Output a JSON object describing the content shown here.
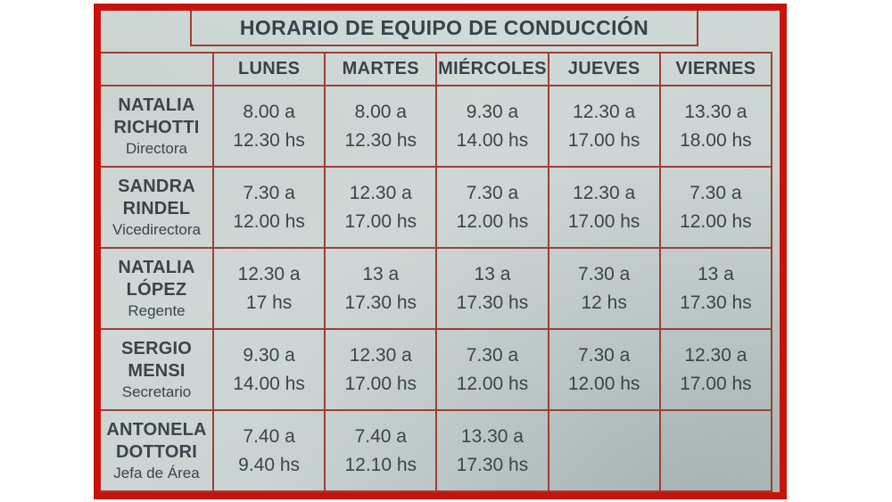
{
  "page": {
    "title": "HORARIO DE EQUIPO DE CONDUCCIÓN"
  },
  "colors": {
    "frame_red": "#c8130d",
    "grid_border": "#9c4038",
    "paper_background": "#ccd5d4",
    "text": "#3b444b"
  },
  "table": {
    "day_headers": [
      "LUNES",
      "MARTES",
      "MIÉRCOLES",
      "JUEVES",
      "VIERNES"
    ],
    "rows": [
      {
        "name_lines": [
          "NATALIA",
          "RICHOTTI"
        ],
        "role": "Directora",
        "times": [
          [
            "8.00 a",
            "12.30 hs"
          ],
          [
            "8.00 a",
            "12.30 hs"
          ],
          [
            "9.30 a",
            "14.00 hs"
          ],
          [
            "12.30 a",
            "17.00 hs"
          ],
          [
            "13.30 a",
            "18.00 hs"
          ]
        ]
      },
      {
        "name_lines": [
          "SANDRA",
          "RINDEL"
        ],
        "role": "Vicedirectora",
        "times": [
          [
            "7.30 a",
            "12.00 hs"
          ],
          [
            "12.30 a",
            "17.00 hs"
          ],
          [
            "7.30 a",
            "12.00 hs"
          ],
          [
            "12.30 a",
            "17.00 hs"
          ],
          [
            "7.30 a",
            "12.00 hs"
          ]
        ]
      },
      {
        "name_lines": [
          "NATALIA",
          "LÓPEZ"
        ],
        "role": "Regente",
        "times": [
          [
            "12.30 a",
            "17 hs"
          ],
          [
            "13 a",
            "17.30 hs"
          ],
          [
            "13 a",
            "17.30 hs"
          ],
          [
            "7.30 a",
            "12 hs"
          ],
          [
            "13 a",
            "17.30 hs"
          ]
        ]
      },
      {
        "name_lines": [
          "SERGIO",
          "MENSI"
        ],
        "role": "Secretario",
        "times": [
          [
            "9.30 a",
            "14.00 hs"
          ],
          [
            "12.30 a",
            "17.00 hs"
          ],
          [
            "7.30 a",
            "12.00 hs"
          ],
          [
            "7.30 a",
            "12.00 hs"
          ],
          [
            "12.30 a",
            "17.00 hs"
          ]
        ]
      },
      {
        "name_lines": [
          "ANTONELA",
          "DOTTORI"
        ],
        "role": "Jefa de Área",
        "times": [
          [
            "7.40 a",
            "9.40 hs"
          ],
          [
            "7.40 a",
            "12.10 hs"
          ],
          [
            "13.30 a",
            "17.30 hs"
          ],
          [
            "",
            ""
          ],
          [
            "",
            ""
          ]
        ]
      }
    ]
  }
}
